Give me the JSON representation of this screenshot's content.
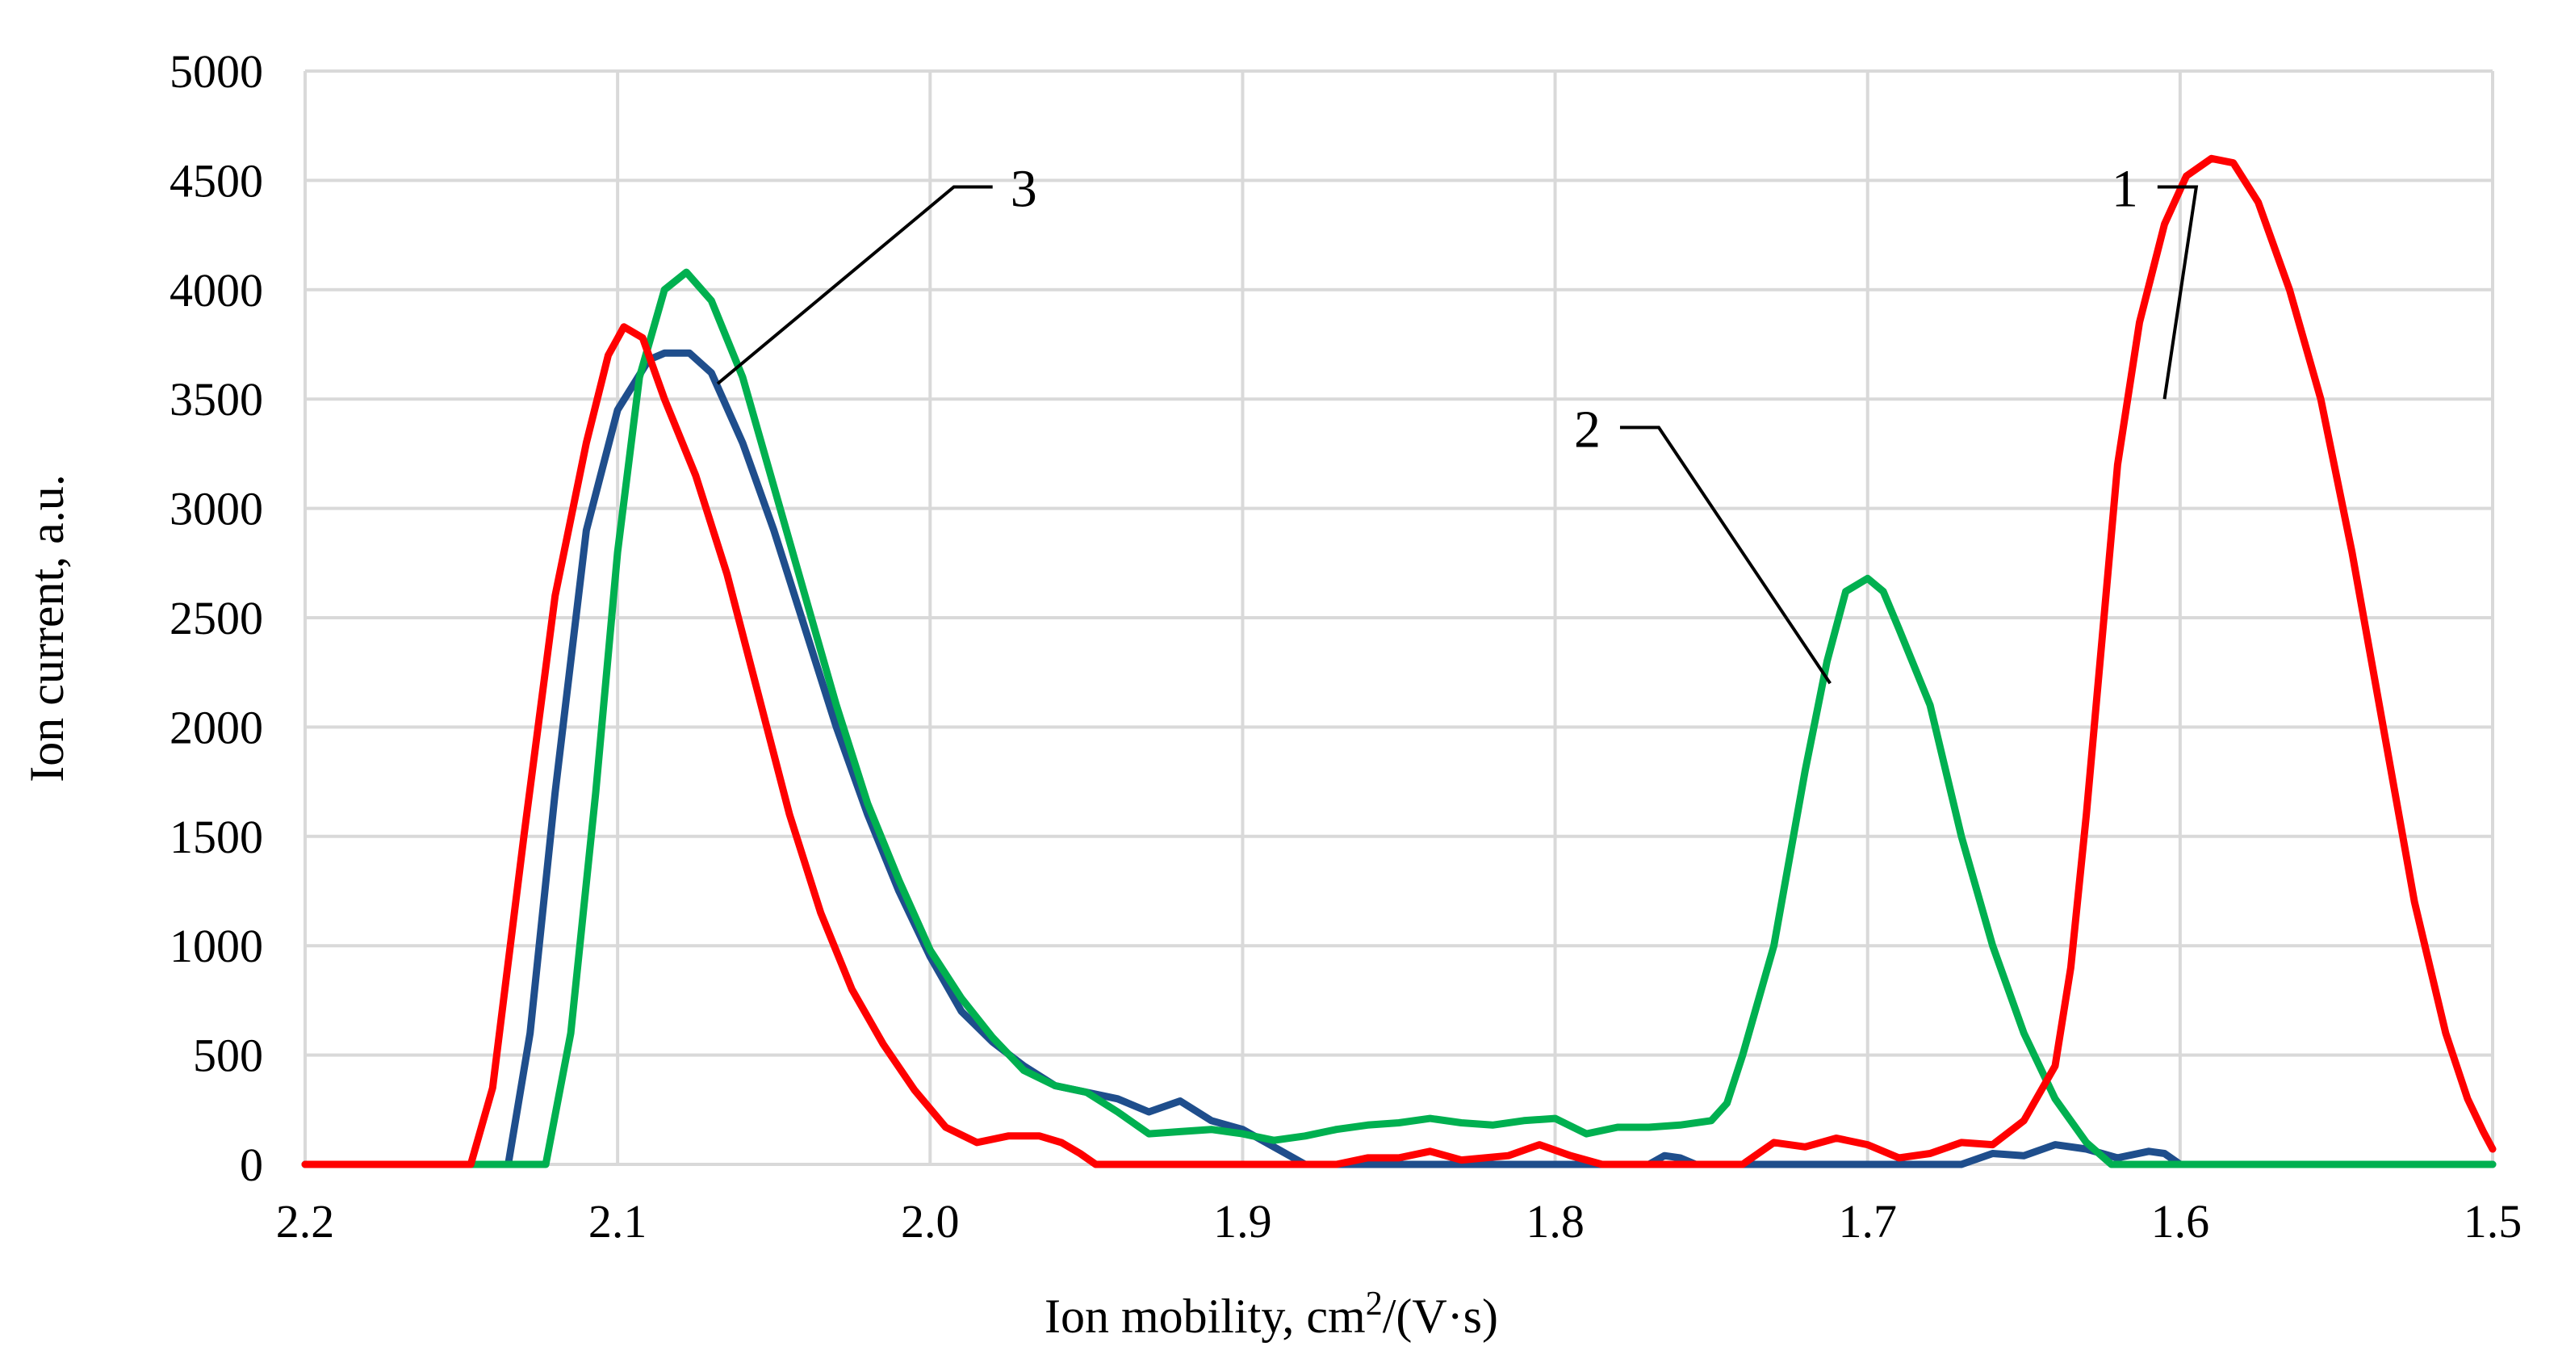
{
  "chart_data": {
    "type": "line",
    "title": "",
    "xlabel": "Ion mobility, cm",
    "xlabel_sup": "2",
    "xlabel_tail": "/(V·s)",
    "ylabel": "Ion current, a.u.",
    "x_reversed": true,
    "xlim": [
      2.2,
      1.5
    ],
    "ylim": [
      0,
      5000
    ],
    "grid": true,
    "x_ticks": [
      2.2,
      2.1,
      2.0,
      1.9,
      1.8,
      1.7,
      1.6,
      1.5
    ],
    "x_tick_labels": [
      "2.2",
      "2.1",
      "2.0",
      "1.9",
      "1.8",
      "1.7",
      "1.6",
      "1.5"
    ],
    "y_ticks": [
      0,
      500,
      1000,
      1500,
      2000,
      2500,
      3000,
      3500,
      4000,
      4500,
      5000
    ],
    "y_tick_labels": [
      "0",
      "500",
      "1000",
      "1500",
      "2000",
      "2500",
      "3000",
      "3500",
      "4000",
      "4500",
      "5000"
    ],
    "series": [
      {
        "name": "3",
        "color": "#1f4e8c",
        "points": [
          [
            2.2,
            0
          ],
          [
            2.135,
            0
          ],
          [
            2.128,
            600
          ],
          [
            2.12,
            1700
          ],
          [
            2.11,
            2900
          ],
          [
            2.1,
            3450
          ],
          [
            2.09,
            3680
          ],
          [
            2.085,
            3710
          ],
          [
            2.077,
            3710
          ],
          [
            2.07,
            3620
          ],
          [
            2.06,
            3300
          ],
          [
            2.05,
            2900
          ],
          [
            2.04,
            2450
          ],
          [
            2.03,
            2000
          ],
          [
            2.02,
            1600
          ],
          [
            2.01,
            1250
          ],
          [
            2.0,
            950
          ],
          [
            1.99,
            700
          ],
          [
            1.98,
            560
          ],
          [
            1.97,
            450
          ],
          [
            1.96,
            360
          ],
          [
            1.95,
            330
          ],
          [
            1.94,
            300
          ],
          [
            1.93,
            240
          ],
          [
            1.92,
            290
          ],
          [
            1.91,
            200
          ],
          [
            1.9,
            160
          ],
          [
            1.89,
            80
          ],
          [
            1.88,
            0
          ],
          [
            1.77,
            0
          ],
          [
            1.765,
            40
          ],
          [
            1.76,
            30
          ],
          [
            1.755,
            0
          ],
          [
            1.67,
            0
          ],
          [
            1.66,
            50
          ],
          [
            1.65,
            40
          ],
          [
            1.64,
            90
          ],
          [
            1.63,
            70
          ],
          [
            1.62,
            30
          ],
          [
            1.61,
            60
          ],
          [
            1.605,
            50
          ],
          [
            1.6,
            0
          ],
          [
            1.5,
            0
          ]
        ]
      },
      {
        "name": "2",
        "color": "#00b050",
        "points": [
          [
            2.2,
            0
          ],
          [
            2.123,
            0
          ],
          [
            2.115,
            600
          ],
          [
            2.107,
            1700
          ],
          [
            2.1,
            2800
          ],
          [
            2.093,
            3600
          ],
          [
            2.085,
            4000
          ],
          [
            2.078,
            4080
          ],
          [
            2.07,
            3950
          ],
          [
            2.06,
            3600
          ],
          [
            2.05,
            3100
          ],
          [
            2.04,
            2600
          ],
          [
            2.03,
            2100
          ],
          [
            2.02,
            1650
          ],
          [
            2.01,
            1300
          ],
          [
            2.0,
            980
          ],
          [
            1.99,
            760
          ],
          [
            1.98,
            580
          ],
          [
            1.97,
            430
          ],
          [
            1.96,
            360
          ],
          [
            1.95,
            330
          ],
          [
            1.94,
            240
          ],
          [
            1.93,
            140
          ],
          [
            1.92,
            150
          ],
          [
            1.91,
            160
          ],
          [
            1.9,
            140
          ],
          [
            1.89,
            110
          ],
          [
            1.88,
            130
          ],
          [
            1.87,
            160
          ],
          [
            1.86,
            180
          ],
          [
            1.85,
            190
          ],
          [
            1.84,
            210
          ],
          [
            1.83,
            190
          ],
          [
            1.82,
            180
          ],
          [
            1.81,
            200
          ],
          [
            1.8,
            210
          ],
          [
            1.79,
            140
          ],
          [
            1.78,
            170
          ],
          [
            1.77,
            170
          ],
          [
            1.76,
            180
          ],
          [
            1.75,
            200
          ],
          [
            1.745,
            280
          ],
          [
            1.74,
            500
          ],
          [
            1.73,
            1000
          ],
          [
            1.72,
            1800
          ],
          [
            1.713,
            2300
          ],
          [
            1.707,
            2620
          ],
          [
            1.7,
            2680
          ],
          [
            1.695,
            2620
          ],
          [
            1.69,
            2450
          ],
          [
            1.68,
            2100
          ],
          [
            1.67,
            1500
          ],
          [
            1.66,
            1000
          ],
          [
            1.65,
            600
          ],
          [
            1.64,
            300
          ],
          [
            1.63,
            100
          ],
          [
            1.622,
            0
          ],
          [
            1.5,
            0
          ]
        ]
      },
      {
        "name": "1",
        "color": "#ff0000",
        "points": [
          [
            2.2,
            0
          ],
          [
            2.147,
            0
          ],
          [
            2.14,
            350
          ],
          [
            2.13,
            1500
          ],
          [
            2.12,
            2600
          ],
          [
            2.11,
            3300
          ],
          [
            2.103,
            3700
          ],
          [
            2.098,
            3830
          ],
          [
            2.092,
            3780
          ],
          [
            2.085,
            3500
          ],
          [
            2.075,
            3150
          ],
          [
            2.065,
            2700
          ],
          [
            2.055,
            2150
          ],
          [
            2.045,
            1600
          ],
          [
            2.035,
            1150
          ],
          [
            2.025,
            800
          ],
          [
            2.015,
            550
          ],
          [
            2.005,
            340
          ],
          [
            1.995,
            170
          ],
          [
            1.985,
            100
          ],
          [
            1.975,
            130
          ],
          [
            1.965,
            130
          ],
          [
            1.958,
            100
          ],
          [
            1.952,
            50
          ],
          [
            1.947,
            0
          ],
          [
            1.87,
            0
          ],
          [
            1.86,
            30
          ],
          [
            1.85,
            30
          ],
          [
            1.84,
            60
          ],
          [
            1.83,
            20
          ],
          [
            1.815,
            40
          ],
          [
            1.805,
            90
          ],
          [
            1.795,
            40
          ],
          [
            1.785,
            0
          ],
          [
            1.74,
            0
          ],
          [
            1.73,
            100
          ],
          [
            1.72,
            80
          ],
          [
            1.71,
            120
          ],
          [
            1.7,
            90
          ],
          [
            1.69,
            30
          ],
          [
            1.68,
            50
          ],
          [
            1.67,
            100
          ],
          [
            1.66,
            90
          ],
          [
            1.65,
            200
          ],
          [
            1.64,
            450
          ],
          [
            1.635,
            900
          ],
          [
            1.63,
            1600
          ],
          [
            1.625,
            2400
          ],
          [
            1.62,
            3200
          ],
          [
            1.613,
            3850
          ],
          [
            1.605,
            4300
          ],
          [
            1.598,
            4520
          ],
          [
            1.59,
            4600
          ],
          [
            1.583,
            4580
          ],
          [
            1.575,
            4400
          ],
          [
            1.565,
            4000
          ],
          [
            1.555,
            3500
          ],
          [
            1.545,
            2800
          ],
          [
            1.535,
            2000
          ],
          [
            1.525,
            1200
          ],
          [
            1.515,
            600
          ],
          [
            1.508,
            300
          ],
          [
            1.503,
            150
          ],
          [
            1.5,
            70
          ]
        ]
      }
    ],
    "annotations": [
      {
        "label": "1",
        "series": "1",
        "anchor": [
          1.605,
          3500
        ],
        "text_at": [
          1.6,
          4470
        ]
      },
      {
        "label": "2",
        "series": "2",
        "anchor": [
          1.712,
          2200
        ],
        "text_at": [
          1.772,
          3370
        ]
      },
      {
        "label": "3",
        "series": "3",
        "anchor": [
          2.068,
          3570
        ],
        "text_at": [
          1.98,
          4470
        ]
      }
    ]
  }
}
